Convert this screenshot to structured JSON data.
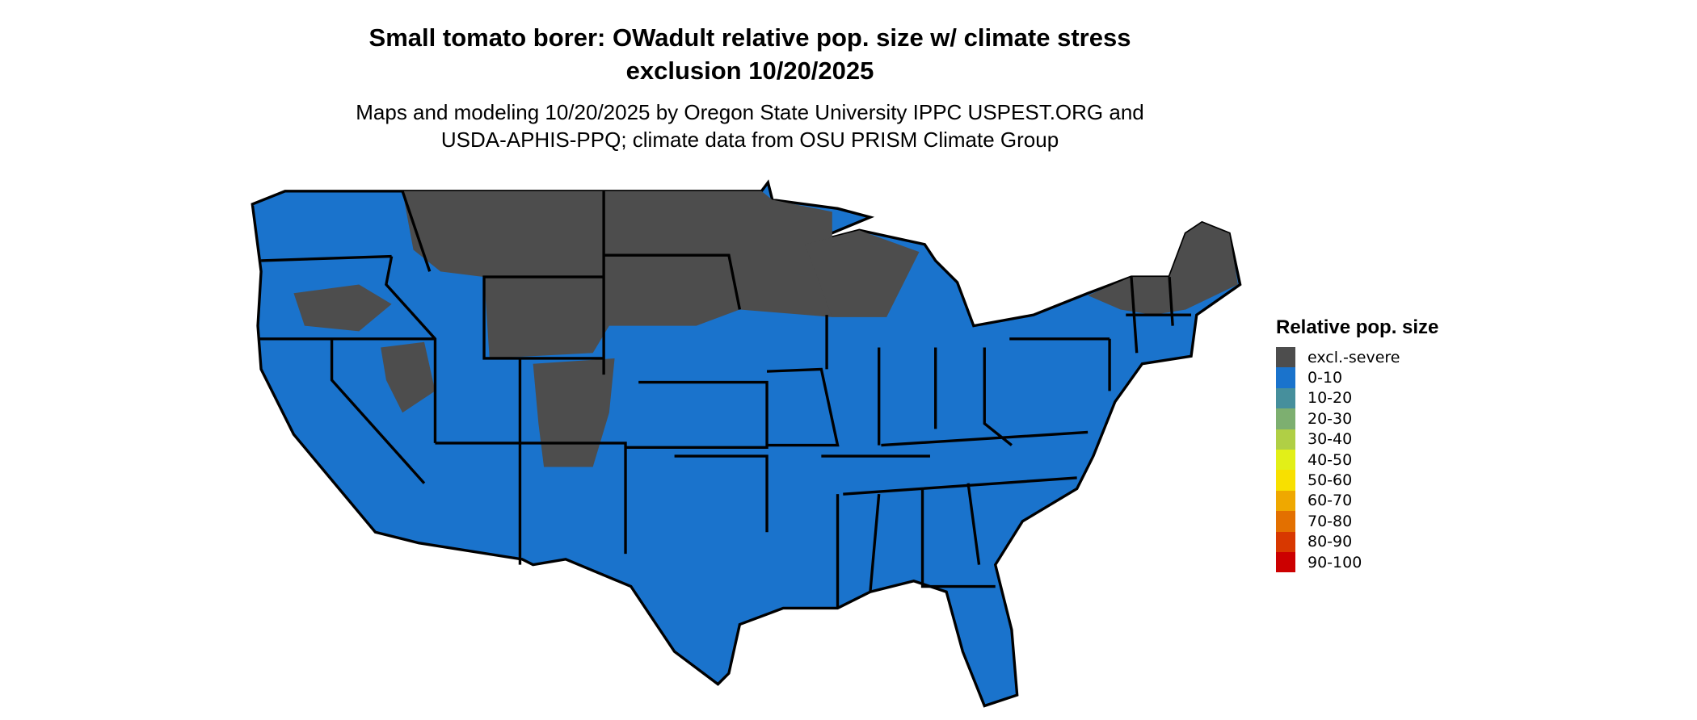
{
  "title": {
    "line1": "Small tomato borer: OWadult relative pop. size w/ climate stress",
    "line2": "exclusion 10/20/2025"
  },
  "subtitle": {
    "line1": "Maps and modeling 10/20/2025 by Oregon State University IPPC USPEST.ORG and",
    "line2": "USDA-APHIS-PPQ; climate data from OSU PRISM Climate Group"
  },
  "map": {
    "region": "Contiguous United States",
    "dominant_class": "0-10",
    "excluded_areas": "northern plains, upper midwest, northern New England, Rocky Mountain highlands",
    "colors": {
      "border": "#000000"
    }
  },
  "legend": {
    "title": "Relative pop. size",
    "items": [
      {
        "label": "excl.-severe",
        "color": "#4d4d4d"
      },
      {
        "label": "0-10",
        "color": "#1a73cc"
      },
      {
        "label": "10-20",
        "color": "#468f9c"
      },
      {
        "label": "20-30",
        "color": "#7daf70"
      },
      {
        "label": "30-40",
        "color": "#b0cf45"
      },
      {
        "label": "40-50",
        "color": "#e2ef18"
      },
      {
        "label": "50-60",
        "color": "#f8e000"
      },
      {
        "label": "60-70",
        "color": "#efa800"
      },
      {
        "label": "70-80",
        "color": "#e37000"
      },
      {
        "label": "80-90",
        "color": "#d83800"
      },
      {
        "label": "90-100",
        "color": "#cc0000"
      }
    ]
  }
}
